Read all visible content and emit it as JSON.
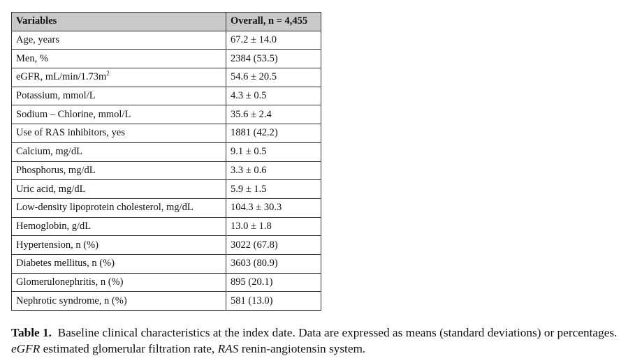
{
  "table": {
    "header": [
      "Variables",
      "Overall, n = 4,455"
    ],
    "rows": [
      {
        "variable": "Age, years",
        "value": "67.2 ± 14.0"
      },
      {
        "variable": "Men, %",
        "value": "2384 (53.5)"
      },
      {
        "variable": "eGFR, mL/min/1.73m",
        "variable_sup": "2",
        "value": "54.6 ± 20.5"
      },
      {
        "variable": "Potassium, mmol/L",
        "value": "4.3 ± 0.5"
      },
      {
        "variable": "Sodium – Chlorine, mmol/L",
        "value": "35.6 ± 2.4"
      },
      {
        "variable": "Use of RAS inhibitors, yes",
        "value": "1881 (42.2)"
      },
      {
        "variable": "Calcium, mg/dL",
        "value": "9.1 ± 0.5"
      },
      {
        "variable": "Phosphorus, mg/dL",
        "value": "3.3 ± 0.6"
      },
      {
        "variable": "Uric acid, mg/dL",
        "value": "5.9 ± 1.5"
      },
      {
        "variable": "Low-density lipoprotein cholesterol, mg/dL",
        "value": "104.3 ± 30.3"
      },
      {
        "variable": "Hemoglobin, g/dL",
        "value": "13.0 ± 1.8"
      },
      {
        "variable": "Hypertension, n (%)",
        "value": "3022 (67.8)"
      },
      {
        "variable": "Diabetes mellitus, n (%)",
        "value": "3603 (80.9)"
      },
      {
        "variable": "Glomerulonephritis, n (%)",
        "value": "895 (20.1)"
      },
      {
        "variable": "Nephrotic syndrome, n (%)",
        "value": "581 (13.0)"
      }
    ]
  },
  "caption": {
    "label": "Table 1.",
    "text": "Baseline clinical characteristics at the index date. Data are expressed as means (standard deviations) or percentages.",
    "abbreviations": [
      {
        "term": "eGFR",
        "definition": "estimated glomerular filtration rate,"
      },
      {
        "term": "RAS",
        "definition": "renin-angiotensin system."
      }
    ]
  }
}
